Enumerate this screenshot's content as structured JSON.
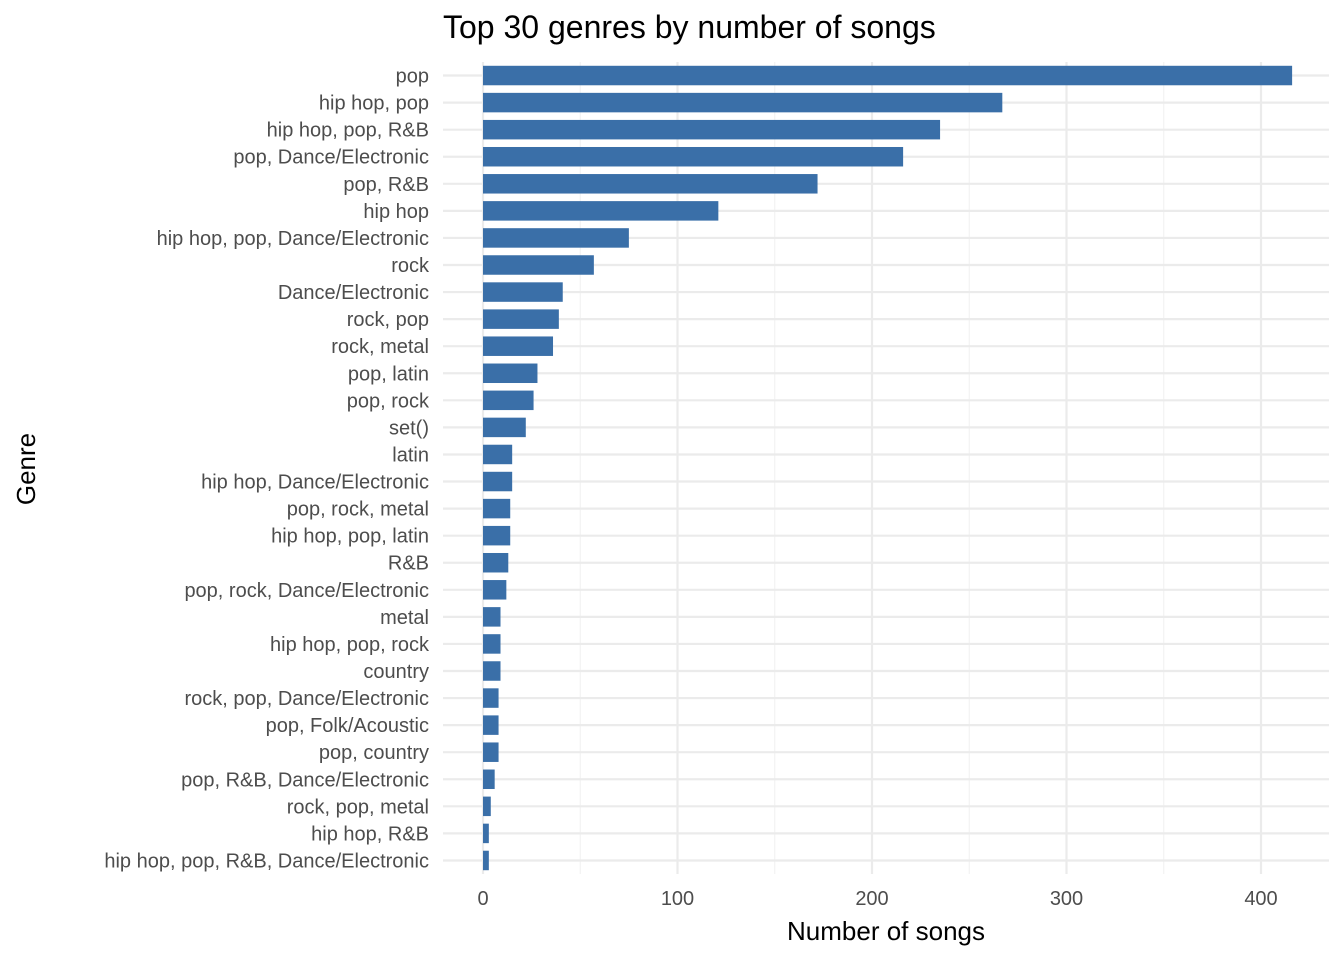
{
  "chart_data": {
    "type": "bar",
    "orientation": "horizontal",
    "title": "Top 30 genres by number of songs",
    "xlabel": "Number of songs",
    "ylabel": "Genre",
    "xlim": [
      -20,
      435
    ],
    "xticks": [
      0,
      100,
      200,
      300,
      400
    ],
    "grid": true,
    "bar_color": "#3A6FA8",
    "categories": [
      "pop",
      "hip hop, pop",
      "hip hop, pop, R&B",
      "pop, Dance/Electronic",
      "pop, R&B",
      "hip hop",
      "hip hop, pop, Dance/Electronic",
      "rock",
      "Dance/Electronic",
      "rock, pop",
      "rock, metal",
      "pop, latin",
      "pop, rock",
      "set()",
      "latin",
      "hip hop, Dance/Electronic",
      "pop, rock, metal",
      "hip hop, pop, latin",
      "R&B",
      "pop, rock, Dance/Electronic",
      "metal",
      "hip hop, pop, rock",
      "country",
      "rock, pop, Dance/Electronic",
      "pop, Folk/Acoustic",
      "pop, country",
      "pop, R&B, Dance/Electronic",
      "rock, pop, metal",
      "hip hop, R&B",
      "hip hop, pop, R&B, Dance/Electronic"
    ],
    "values": [
      416,
      267,
      235,
      216,
      172,
      121,
      75,
      57,
      41,
      39,
      36,
      28,
      26,
      22,
      15,
      15,
      14,
      14,
      13,
      12,
      9,
      9,
      9,
      8,
      8,
      8,
      6,
      4,
      3,
      3
    ]
  }
}
